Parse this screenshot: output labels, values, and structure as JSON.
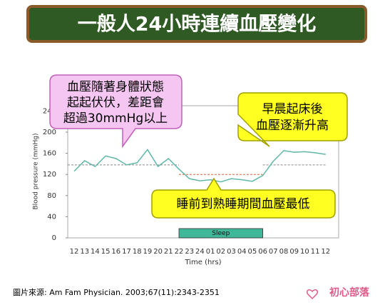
{
  "chart_data": {
    "type": "line",
    "title": "一般人24小時連續血壓變化",
    "y_label": "Blood pressure (mmHg)",
    "x_label": "Time (hrs)",
    "categories": [
      "12",
      "13",
      "14",
      "15",
      "16",
      "17",
      "18",
      "19",
      "20",
      "21",
      "22",
      "23",
      "24",
      "01",
      "02",
      "03",
      "04",
      "05",
      "06",
      "07",
      "08",
      "09",
      "10",
      "11",
      "12"
    ],
    "series": [
      {
        "color": "#5fb8a8",
        "values": [
          126,
          146,
          135,
          155,
          150,
          138,
          142,
          167,
          135,
          150,
          130,
          112,
          108,
          110,
          106,
          112,
          110,
          107,
          118,
          145,
          165,
          162,
          163,
          161,
          158
        ]
      }
    ],
    "ylim": [
      0,
      250
    ],
    "yticks": [
      0,
      40,
      80,
      120,
      160,
      200,
      240
    ],
    "sleep_band": {
      "label": "Sleep",
      "from": "22",
      "to": "06",
      "color": "#3fb89a"
    },
    "day_level": 138,
    "night_level": 120,
    "day_level_color": "#888888",
    "night_level_color": "#e0603a",
    "annotations": [
      {
        "lines": [
          "血壓隨著身體狀態",
          "起起伏伏，差距會",
          "超過30mmHg以上"
        ]
      },
      {
        "lines": [
          "早晨起床後",
          "血壓逐漸升高"
        ]
      },
      {
        "lines": [
          "睡前到熟睡期間血壓最低"
        ]
      }
    ],
    "source": "圖片來源: Am Fam Physician. 2003;67(11):2343-2351",
    "logo": "初心部落"
  }
}
